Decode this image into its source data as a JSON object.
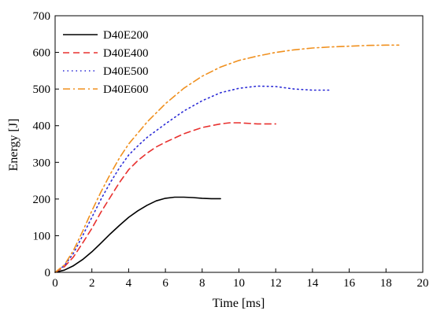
{
  "chart_data": {
    "type": "line",
    "xlabel": "Time [ms]",
    "ylabel": "Energy [J]",
    "xlim": [
      0,
      20
    ],
    "ylim": [
      0,
      700
    ],
    "xticks": [
      0,
      2,
      4,
      6,
      8,
      10,
      12,
      14,
      16,
      18,
      20
    ],
    "yticks": [
      0,
      100,
      200,
      300,
      400,
      500,
      600,
      700
    ],
    "grid": false,
    "legend_position": "top-left",
    "series": [
      {
        "name": "D40E200",
        "color": "#000000",
        "dash": "solid",
        "x": [
          0,
          0.5,
          1,
          1.5,
          2,
          2.5,
          3,
          3.5,
          4,
          4.5,
          5,
          5.5,
          6,
          6.5,
          7,
          7.5,
          8,
          8.5,
          9
        ],
        "y": [
          0,
          6,
          18,
          35,
          56,
          80,
          105,
          128,
          150,
          168,
          183,
          195,
          202,
          205,
          205,
          204,
          202,
          201,
          201
        ]
      },
      {
        "name": "D40E400",
        "color": "#e8312f",
        "dash": "dashed",
        "x": [
          0,
          0.5,
          1,
          1.5,
          2,
          2.5,
          3,
          3.5,
          4,
          4.5,
          5,
          5.5,
          6,
          7,
          8,
          9,
          9.5,
          10,
          11,
          12
        ],
        "y": [
          0,
          15,
          42,
          80,
          120,
          165,
          205,
          245,
          280,
          305,
          325,
          342,
          355,
          378,
          395,
          405,
          408,
          408,
          405,
          405
        ]
      },
      {
        "name": "D40E500",
        "color": "#2b2bd6",
        "dash": "dotted",
        "x": [
          0,
          0.5,
          1,
          1.5,
          2,
          2.5,
          3,
          3.5,
          4,
          4.5,
          5,
          6,
          7,
          8,
          9,
          10,
          11,
          12,
          13,
          14,
          15
        ],
        "y": [
          0,
          18,
          52,
          100,
          150,
          200,
          245,
          285,
          320,
          345,
          368,
          405,
          440,
          468,
          490,
          502,
          508,
          507,
          500,
          497,
          497
        ]
      },
      {
        "name": "D40E600",
        "color": "#f0901e",
        "dash": "dashdot",
        "x": [
          0,
          0.5,
          1,
          1.5,
          2,
          2.5,
          3,
          3.5,
          4,
          5,
          6,
          7,
          8,
          9,
          10,
          11,
          12,
          13,
          14,
          15,
          16,
          17,
          18,
          18.7
        ],
        "y": [
          0,
          20,
          60,
          112,
          168,
          220,
          268,
          312,
          350,
          410,
          460,
          502,
          535,
          560,
          578,
          590,
          600,
          607,
          612,
          615,
          617,
          619,
          620,
          620
        ]
      }
    ]
  }
}
